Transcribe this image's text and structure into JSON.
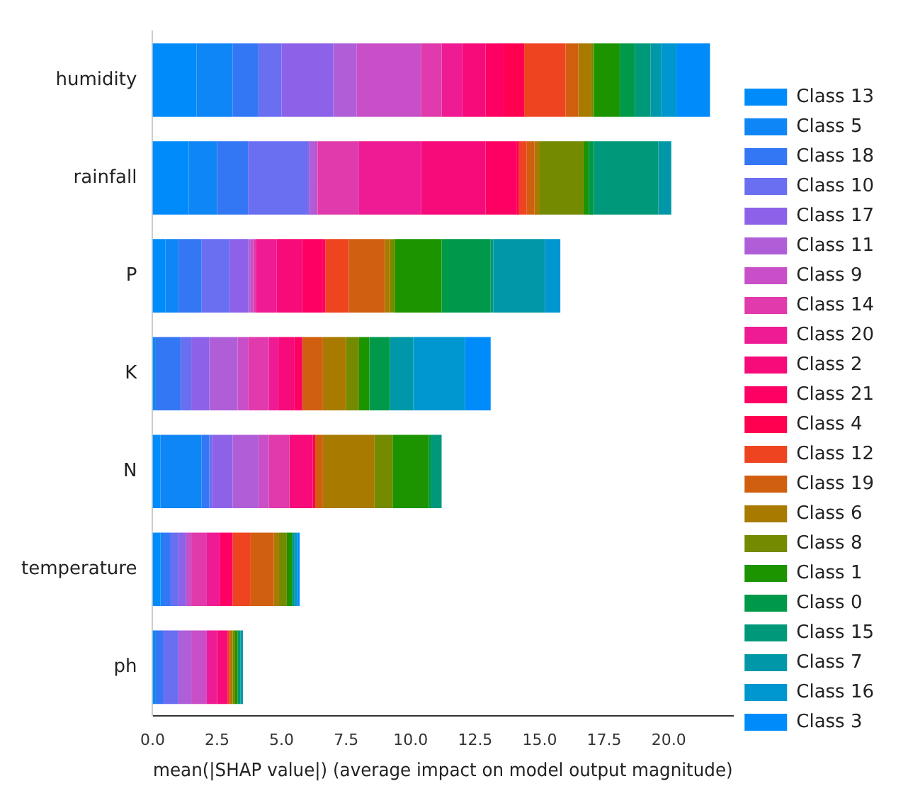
{
  "chart_data": {
    "type": "bar",
    "orientation": "horizontal",
    "stacked": true,
    "xlabel": "mean(|SHAP value|) (average impact on model output magnitude)",
    "categories": [
      "humidity",
      "rainfall",
      "P",
      "K",
      "N",
      "temperature",
      "ph"
    ],
    "xlim": [
      0,
      22.5
    ],
    "xticks": [
      {
        "value": 0,
        "label": "0.0"
      },
      {
        "value": 2.5,
        "label": "2.5"
      },
      {
        "value": 5,
        "label": "5.0"
      },
      {
        "value": 7.5,
        "label": "7.5"
      },
      {
        "value": 10,
        "label": "10.0"
      },
      {
        "value": 12.5,
        "label": "12.5"
      },
      {
        "value": 15,
        "label": "15.0"
      },
      {
        "value": 17.5,
        "label": "17.5"
      },
      {
        "value": 20,
        "label": "20.0"
      }
    ],
    "grid": false,
    "legend": "right",
    "series": [
      {
        "name": "Class 13",
        "color": "#008bfb",
        "values": [
          1.7,
          1.4,
          0.5,
          0.1,
          0.3,
          0.3,
          0.1
        ]
      },
      {
        "name": "Class 5",
        "color": "#0f86f5",
        "values": [
          1.4,
          1.1,
          0.5,
          0,
          1.6,
          0.1,
          0
        ]
      },
      {
        "name": "Class 18",
        "color": "#3377f5",
        "values": [
          1.0,
          1.2,
          0.9,
          1.0,
          0.3,
          0.3,
          0.3
        ]
      },
      {
        "name": "Class 10",
        "color": "#6a6ef0",
        "values": [
          0.9,
          2.3,
          1.1,
          0.4,
          0.1,
          0.3,
          0.6
        ]
      },
      {
        "name": "Class 17",
        "color": "#8d62e8",
        "values": [
          2.0,
          0.1,
          0.7,
          0.7,
          0.8,
          0.3,
          0
        ]
      },
      {
        "name": "Class 11",
        "color": "#b05ed8",
        "values": [
          0.9,
          0.2,
          0.1,
          1.1,
          1.0,
          0,
          0.5
        ]
      },
      {
        "name": "Class 9",
        "color": "#c94fc8",
        "values": [
          2.5,
          0.1,
          0.1,
          0.4,
          0.4,
          0.2,
          0.6
        ]
      },
      {
        "name": "Class 14",
        "color": "#e03aac",
        "values": [
          0.8,
          1.6,
          0.1,
          0.8,
          0.8,
          0.6,
          0
        ]
      },
      {
        "name": "Class 20",
        "color": "#ef1b94",
        "values": [
          0.8,
          2.4,
          0.8,
          0.4,
          0,
          0.5,
          0.4
        ]
      },
      {
        "name": "Class 2",
        "color": "#f70a7a",
        "values": [
          0.9,
          2.5,
          1.0,
          0.6,
          0.9,
          0,
          0.4
        ]
      },
      {
        "name": "Class 21",
        "color": "#fe0064",
        "values": [
          0.7,
          1.2,
          0.8,
          0.3,
          0,
          0.5,
          0
        ]
      },
      {
        "name": "Class 4",
        "color": "#ff0050",
        "values": [
          0.8,
          0.1,
          0.1,
          0,
          0.1,
          0,
          0
        ]
      },
      {
        "name": "Class 12",
        "color": "#ee4420",
        "values": [
          1.6,
          0.3,
          0.9,
          0,
          0,
          0.7,
          0.1
        ]
      },
      {
        "name": "Class 19",
        "color": "#d06010",
        "values": [
          0.5,
          0.3,
          1.4,
          0.8,
          0.3,
          0.9,
          0
        ]
      },
      {
        "name": "Class 6",
        "color": "#a87a00",
        "values": [
          0.5,
          0.2,
          0.2,
          0.9,
          2.0,
          0.2,
          0.1
        ]
      },
      {
        "name": "Class 8",
        "color": "#748a00",
        "values": [
          0.1,
          1.7,
          0.2,
          0.5,
          0.7,
          0.3,
          0.1
        ]
      },
      {
        "name": "Class 1",
        "color": "#1c9400",
        "values": [
          1.0,
          0.2,
          1.8,
          0.4,
          1.4,
          0.2,
          0.1
        ]
      },
      {
        "name": "Class 0",
        "color": "#00994a",
        "values": [
          0.6,
          0.2,
          1.9,
          0.8,
          0.1,
          0,
          0
        ]
      },
      {
        "name": "Class 15",
        "color": "#00987a",
        "values": [
          0.6,
          2.5,
          0.1,
          0,
          0.4,
          0.1,
          0.1
        ]
      },
      {
        "name": "Class 7",
        "color": "#0098a8",
        "values": [
          0.4,
          0.5,
          2.0,
          0.9,
          0,
          0,
          0.1
        ]
      },
      {
        "name": "Class 16",
        "color": "#0097d0",
        "values": [
          0.6,
          0,
          0.6,
          2.0,
          0,
          0.1,
          0
        ]
      },
      {
        "name": "Class 3",
        "color": "#008bfb",
        "values": [
          1.3,
          0,
          0,
          1.0,
          0,
          0.1,
          0
        ]
      }
    ]
  }
}
